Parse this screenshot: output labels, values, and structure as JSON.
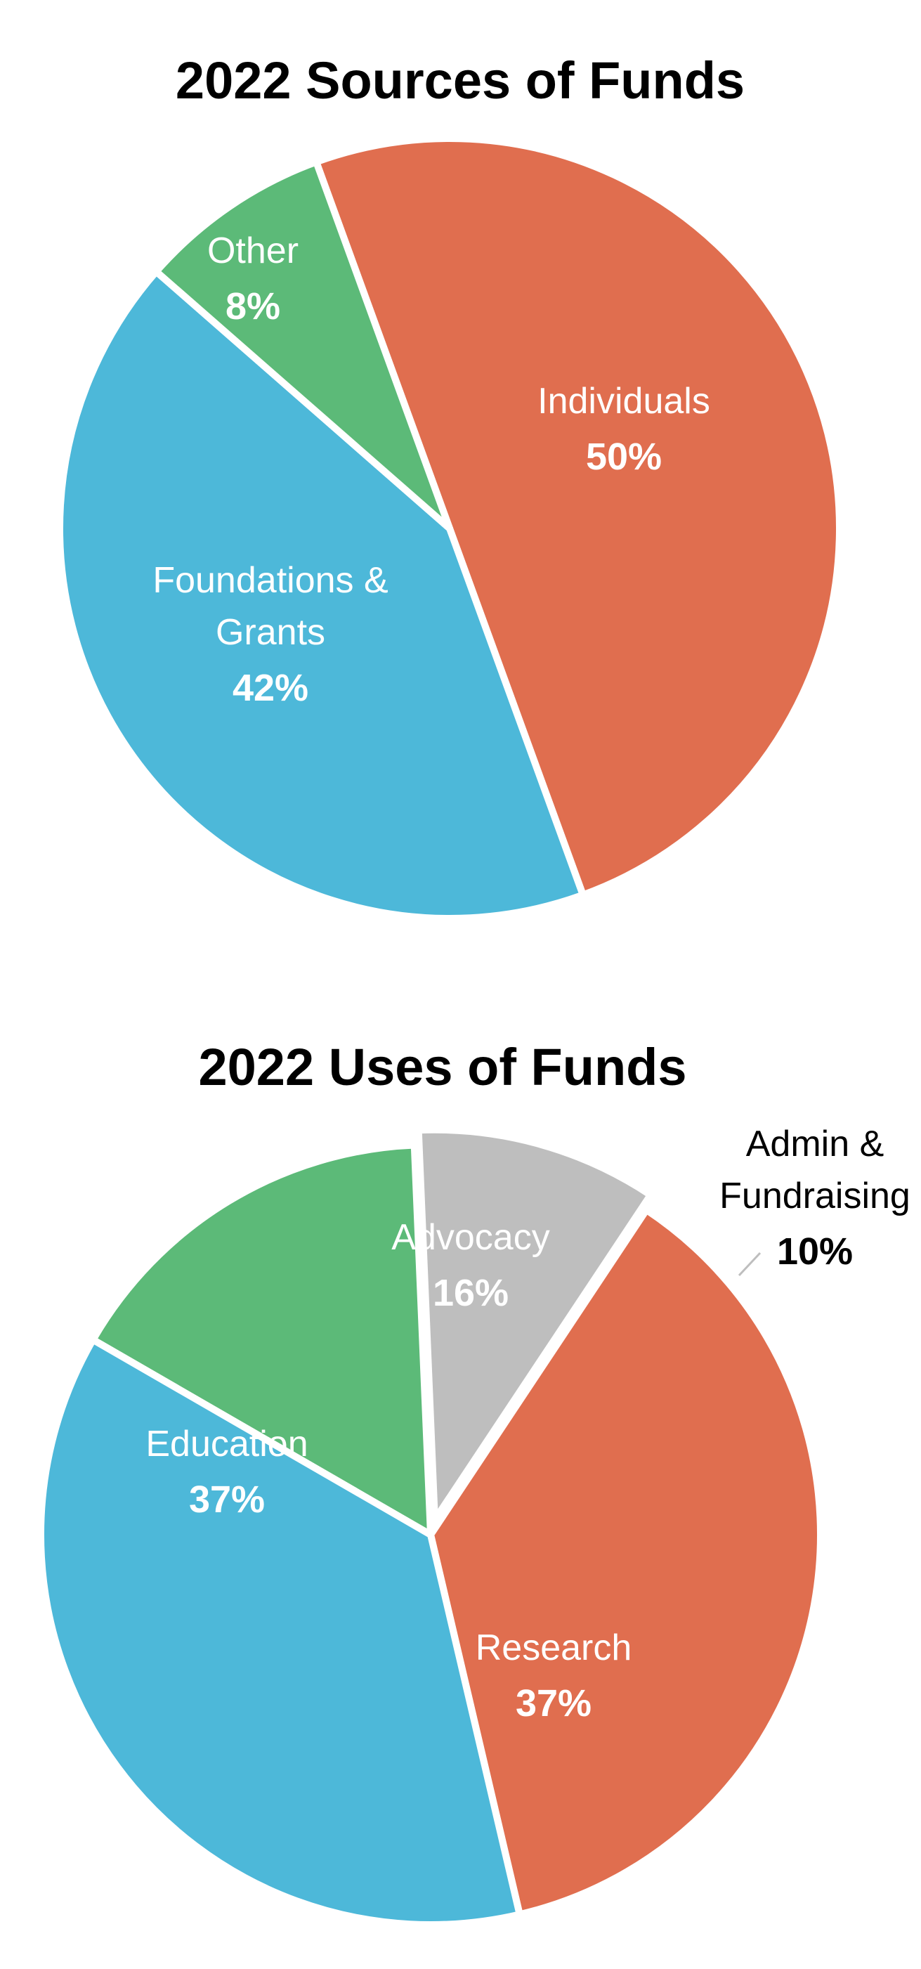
{
  "chart_data": [
    {
      "type": "pie",
      "title": "2022 Sources of Funds",
      "slices": [
        {
          "label_lines": [
            "Individuals"
          ],
          "value": 50,
          "percent_label": "50%",
          "color": "#E06E4F",
          "label_color": "#ffffff"
        },
        {
          "label_lines": [
            "Foundations &",
            "Grants"
          ],
          "value": 42,
          "percent_label": "42%",
          "color": "#4DB8D9",
          "label_color": "#ffffff"
        },
        {
          "label_lines": [
            "Other"
          ],
          "value": 8,
          "percent_label": "8%",
          "color": "#5CBA78",
          "label_color": "#ffffff"
        }
      ]
    },
    {
      "type": "pie",
      "title": "2022 Uses of Funds",
      "slices": [
        {
          "label_lines": [
            "Advocacy"
          ],
          "value": 16,
          "percent_label": "16%",
          "color": "#5CBA78",
          "label_color": "#ffffff"
        },
        {
          "label_lines": [
            "Admin &",
            "Fundraising"
          ],
          "value": 10,
          "percent_label": "10%",
          "color": "#BEBEBE",
          "label_color": "#000000"
        },
        {
          "label_lines": [
            "Research"
          ],
          "value": 37,
          "percent_label": "37%",
          "color": "#E06E4F",
          "label_color": "#ffffff"
        },
        {
          "label_lines": [
            "Education"
          ],
          "value": 37,
          "percent_label": "37%",
          "color": "#4DB8D9",
          "label_color": "#ffffff"
        }
      ]
    }
  ]
}
